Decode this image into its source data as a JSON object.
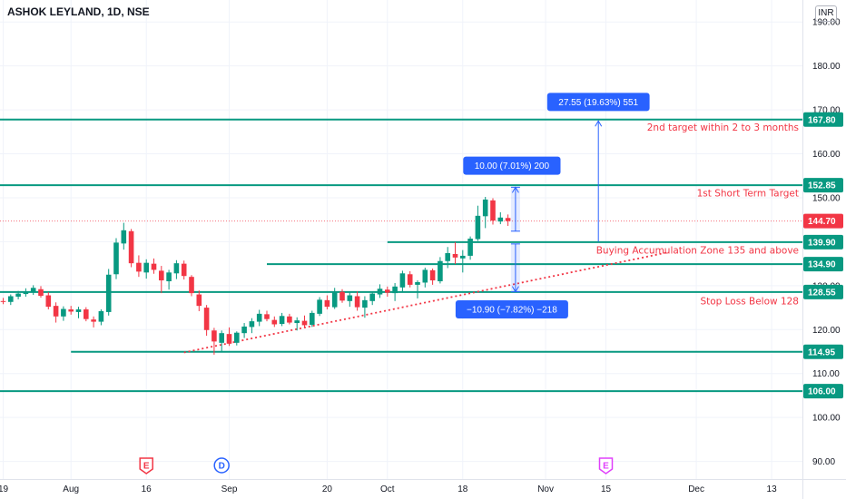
{
  "header": {
    "title": "ASHOK LEYLAND, 1D, NSE",
    "currency": "INR"
  },
  "colors": {
    "up": "#089981",
    "down": "#f23645",
    "level": "#089981",
    "anno": "#f23645",
    "measure": "#2962ff",
    "current": "#f23645"
  },
  "chart_data": {
    "type": "candlestick",
    "title": "ASHOK LEYLAND, 1D, NSE",
    "ylim": [
      86,
      195
    ],
    "y_ticks": [
      90,
      100,
      110,
      120,
      130,
      140,
      150,
      160,
      170,
      180,
      190
    ],
    "y_tick_labels": [
      "90.00",
      "100.00",
      "110.00",
      "120.00",
      "130.00",
      "140.00",
      "150.00",
      "160.00",
      "170.00",
      "180.00",
      "190.00"
    ],
    "x_ticks": [
      {
        "label": "19",
        "index": 0
      },
      {
        "label": "Aug",
        "index": 9
      },
      {
        "label": "16",
        "index": 19
      },
      {
        "label": "Sep",
        "index": 30
      },
      {
        "label": "20",
        "index": 43
      },
      {
        "label": "Oct",
        "index": 51
      },
      {
        "label": "18",
        "index": 61
      },
      {
        "label": "Nov",
        "index": 72
      },
      {
        "label": "15",
        "index": 80
      },
      {
        "label": "Dec",
        "index": 92
      },
      {
        "label": "13",
        "index": 102
      }
    ],
    "candles": [
      [
        126.5,
        127.2,
        125.8,
        126.4
      ],
      [
        126.3,
        128.0,
        125.6,
        127.6
      ],
      [
        127.5,
        128.8,
        126.9,
        128.2
      ],
      [
        128.1,
        129.4,
        127.5,
        128.6
      ],
      [
        128.6,
        130.1,
        127.9,
        129.5
      ],
      [
        129.2,
        129.9,
        127.3,
        127.7
      ],
      [
        127.8,
        128.5,
        124.6,
        125.2
      ],
      [
        125.4,
        126.2,
        121.6,
        123.0
      ],
      [
        123.0,
        125.3,
        122.0,
        124.7
      ],
      [
        124.6,
        125.4,
        123.4,
        124.1
      ],
      [
        124.0,
        125.2,
        122.6,
        124.6
      ],
      [
        124.6,
        125.1,
        121.9,
        122.4
      ],
      [
        122.3,
        123.0,
        120.5,
        121.8
      ],
      [
        121.8,
        124.6,
        121.0,
        124.2
      ],
      [
        124.0,
        133.8,
        123.2,
        132.5
      ],
      [
        132.6,
        140.8,
        131.5,
        139.8
      ],
      [
        139.6,
        144.3,
        138.2,
        142.6
      ],
      [
        142.4,
        142.9,
        134.2,
        135.1
      ],
      [
        135.2,
        136.9,
        132.0,
        133.2
      ],
      [
        133.0,
        136.0,
        131.6,
        135.2
      ],
      [
        135.0,
        136.2,
        132.7,
        133.6
      ],
      [
        133.4,
        134.5,
        128.3,
        131.2
      ],
      [
        131.0,
        133.6,
        129.1,
        133.0
      ],
      [
        132.8,
        135.8,
        131.5,
        135.1
      ],
      [
        135.0,
        135.7,
        131.4,
        132.2
      ],
      [
        132.0,
        132.4,
        127.6,
        128.3
      ],
      [
        128.0,
        128.9,
        124.2,
        125.4
      ],
      [
        125.0,
        125.6,
        118.6,
        119.9
      ],
      [
        119.8,
        120.4,
        114.3,
        117.3
      ],
      [
        117.0,
        119.8,
        114.9,
        119.2
      ],
      [
        119.0,
        120.5,
        116.3,
        116.8
      ],
      [
        117.0,
        119.6,
        116.4,
        119.3
      ],
      [
        119.2,
        121.5,
        118.1,
        120.7
      ],
      [
        120.6,
        122.6,
        119.2,
        121.9
      ],
      [
        121.8,
        124.5,
        120.8,
        123.6
      ],
      [
        123.5,
        124.3,
        121.9,
        122.4
      ],
      [
        122.2,
        123.0,
        120.6,
        121.2
      ],
      [
        121.3,
        123.8,
        120.8,
        123.1
      ],
      [
        123.0,
        123.6,
        121.2,
        121.6
      ],
      [
        121.5,
        122.8,
        119.8,
        122.1
      ],
      [
        122.0,
        123.2,
        120.5,
        121.0
      ],
      [
        121.1,
        124.3,
        120.6,
        123.8
      ],
      [
        123.6,
        127.4,
        123.1,
        126.8
      ],
      [
        126.7,
        127.8,
        124.6,
        125.2
      ],
      [
        125.1,
        129.5,
        124.7,
        128.7
      ],
      [
        128.6,
        129.2,
        126.1,
        126.6
      ],
      [
        126.5,
        128.4,
        125.2,
        127.8
      ],
      [
        127.6,
        128.7,
        124.3,
        125.1
      ],
      [
        125.0,
        127.6,
        122.7,
        126.7
      ],
      [
        126.5,
        128.7,
        125.6,
        128.2
      ],
      [
        128.0,
        130.3,
        127.2,
        129.3
      ],
      [
        129.1,
        129.8,
        127.5,
        128.4
      ],
      [
        128.3,
        130.6,
        126.5,
        129.8
      ],
      [
        129.6,
        133.4,
        128.7,
        132.8
      ],
      [
        132.6,
        133.3,
        129.6,
        130.2
      ],
      [
        130.2,
        131.2,
        127.1,
        130.8
      ],
      [
        130.7,
        134.1,
        129.6,
        133.6
      ],
      [
        133.5,
        133.9,
        130.2,
        131.2
      ],
      [
        131.0,
        136.5,
        130.5,
        135.6
      ],
      [
        135.6,
        138.8,
        134.0,
        137.4
      ],
      [
        137.2,
        139.9,
        134.9,
        136.4
      ],
      [
        136.2,
        138.1,
        133.0,
        136.8
      ],
      [
        136.8,
        141.2,
        135.9,
        140.7
      ],
      [
        140.6,
        148.2,
        140.2,
        145.9
      ],
      [
        145.8,
        150.2,
        143.1,
        149.6
      ],
      [
        149.4,
        149.9,
        143.9,
        144.8
      ],
      [
        144.6,
        146.7,
        144.0,
        145.5
      ],
      [
        145.4,
        146.2,
        143.6,
        144.7
      ]
    ],
    "levels": [
      {
        "value": 167.8,
        "label": "167.80",
        "from_index": -2
      },
      {
        "value": 152.85,
        "label": "152.85",
        "from_index": -2
      },
      {
        "value": 139.9,
        "label": "139.90",
        "from_index": 51
      },
      {
        "value": 134.9,
        "label": "134.90",
        "from_index": 35
      },
      {
        "value": 128.55,
        "label": "128.55",
        "from_index": -2
      },
      {
        "value": 114.95,
        "label": "114.95",
        "from_index": 9
      },
      {
        "value": 106.0,
        "label": "106.00",
        "from_index": -2
      }
    ],
    "last_price": {
      "value": 144.7,
      "label": "144.70"
    },
    "trendline": {
      "from": {
        "index": 24,
        "value": 114.8
      },
      "to": {
        "index": 88,
        "value": 137.5
      }
    },
    "annotations": [
      {
        "text": "2nd target within 2 to 3 months",
        "value": 166.0
      },
      {
        "text": "1st Short Term Target",
        "value": 151.0
      },
      {
        "text": "Buying Accumulation Zone 135 and above",
        "value": 138.0
      },
      {
        "text": "Stop Loss Below 128",
        "value": 126.5
      }
    ],
    "measures": [
      {
        "text": "27.55 (19.63%) 551",
        "index": 79,
        "from": 140.0,
        "to": 167.5,
        "label_value": 171.8
      },
      {
        "text": "10.00 (7.01%) 200",
        "index": 68,
        "from": 142.4,
        "to": 152.4,
        "label_value": 157.3
      },
      {
        "text": "−10.90 (−7.82%) −218",
        "index": 68,
        "from": 139.5,
        "to": 128.6,
        "label_value": 124.6
      }
    ],
    "events": [
      {
        "letter": "E",
        "index": 19,
        "color": "#f23645",
        "shape": "earnings"
      },
      {
        "letter": "D",
        "index": 29,
        "color": "#2962ff",
        "shape": "dividend"
      },
      {
        "letter": "E",
        "index": 80,
        "color": "#e040fb",
        "shape": "earnings"
      }
    ]
  }
}
